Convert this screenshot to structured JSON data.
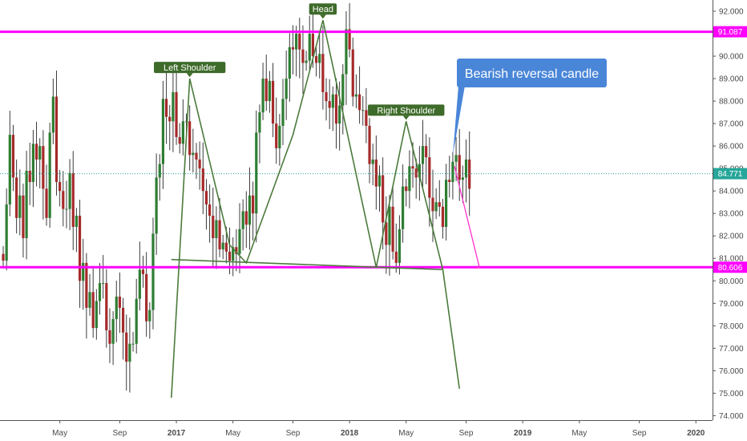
{
  "chart_data": {
    "type": "candlestick",
    "y_axis": {
      "ylim": [
        73.8,
        92.5
      ],
      "ticks": [
        74,
        75,
        76,
        77,
        78,
        79,
        80,
        81,
        82,
        83,
        84,
        85,
        86,
        87,
        88,
        89,
        90,
        91,
        92
      ],
      "tick_labels": [
        "74.000",
        "75.000",
        "76.000",
        "77.000",
        "78.000",
        "79.000",
        "80.000",
        "81.000",
        "82.000",
        "83.000",
        "84.000",
        "85.000",
        "86.000",
        "87.000",
        "88.000",
        "89.000",
        "90.000",
        "91.000",
        "92.000"
      ],
      "grid": false,
      "position": "right"
    },
    "x_axis": {
      "ticks": [
        {
          "label": "May",
          "week": 17,
          "bold": false
        },
        {
          "label": "Sep",
          "week": 35,
          "bold": false
        },
        {
          "label": "2017",
          "week": 52,
          "bold": true
        },
        {
          "label": "May",
          "week": 69,
          "bold": false
        },
        {
          "label": "Sep",
          "week": 87,
          "bold": false
        },
        {
          "label": "2018",
          "week": 104,
          "bold": true
        },
        {
          "label": "May",
          "week": 121,
          "bold": false
        },
        {
          "label": "Sep",
          "week": 139,
          "bold": false
        },
        {
          "label": "2019",
          "week": 156,
          "bold": true
        },
        {
          "label": "May",
          "week": 173,
          "bold": false
        },
        {
          "label": "Sep",
          "week": 191,
          "bold": false
        },
        {
          "label": "2020",
          "week": 208,
          "bold": true
        }
      ],
      "last_week": 213
    },
    "closes": [
      80.9,
      83.4,
      86.5,
      84.6,
      82.8,
      83.8,
      81.9,
      84.9,
      84.4,
      86.1,
      85.4,
      86.0,
      84.1,
      82.8,
      86.6,
      88.2,
      84.4,
      84.0,
      83.2,
      83.2,
      84.8,
      82.4,
      82.9,
      80.0,
      80.8,
      78.8,
      79.5,
      77.9,
      79.1,
      79.9,
      79.9,
      77.8,
      77.2,
      78.3,
      79.3,
      78.8,
      77.7,
      76.4,
      77.2,
      77.2,
      79.2,
      80.5,
      80.3,
      78.2,
      78.7,
      82.1,
      84.6,
      85.2,
      88.1,
      87.3,
      87.1,
      88.4,
      86.4,
      86.1,
      87.1,
      87.1,
      85.6,
      85.7,
      85.4,
      85.0,
      84.0,
      83.4,
      82.9,
      81.9,
      82.7,
      81.4,
      81.7,
      81.3,
      80.9,
      81.5,
      81.2,
      82.3,
      83.1,
      82.5,
      83.8,
      83.0,
      86.6,
      87.5,
      89.0,
      88.0,
      88.9,
      87.0,
      85.9,
      86.9,
      88.1,
      89.0,
      90.4,
      90.3,
      91.0,
      90.3,
      89.7,
      89.8,
      91.0,
      90.0,
      89.7,
      90.1,
      88.4,
      88.0,
      87.7,
      88.3,
      87.0,
      87.8,
      89.2,
      91.2,
      90.3,
      88.2,
      88.3,
      87.6,
      87.6,
      86.9,
      85.2,
      85.4,
      84.2,
      84.7,
      82.6,
      81.6,
      83.3,
      81.3,
      80.8,
      82.3,
      84.2,
      84.0,
      85.1,
      85.0,
      84.6,
      85.2,
      86.0,
      85.5,
      83.7,
      83.1,
      83.5,
      83.3,
      82.4,
      84.5,
      84.4,
      85.3,
      85.6,
      84.5,
      84.6,
      85.4,
      84.1
    ],
    "start_open": 81.2,
    "levels": [
      {
        "value": 91.087,
        "label": "91.087",
        "color": "#ff00ff"
      },
      {
        "value": 80.606,
        "label": "80.606",
        "color": "#ff00ff"
      },
      {
        "value": 84.771,
        "label": "84.771",
        "color": "#26a69a"
      }
    ],
    "pattern_zigzag": [
      [
        50.5,
        74.8
      ],
      [
        56,
        89.0
      ],
      [
        68,
        81.6
      ],
      [
        73,
        80.8
      ],
      [
        87,
        86.5
      ],
      [
        96,
        91.6
      ],
      [
        112,
        80.6
      ],
      [
        121,
        87.1
      ],
      [
        132,
        80.5
      ],
      [
        137,
        75.2
      ]
    ],
    "neckline": [
      [
        50.5,
        80.95
      ],
      [
        132,
        80.5
      ]
    ],
    "projection": [
      [
        135.5,
        85.1
      ],
      [
        143,
        80.6
      ]
    ],
    "annotations": [
      {
        "text": "Left Shoulder",
        "week": 56,
        "price": 89.0
      },
      {
        "text": "Head",
        "week": 96,
        "price": 91.6
      },
      {
        "text": "Right Shoulder",
        "week": 121,
        "price": 87.1
      }
    ],
    "callout": {
      "text": "Bearish reversal candle",
      "anchor_week": 135,
      "anchor_price": 85.6
    }
  }
}
